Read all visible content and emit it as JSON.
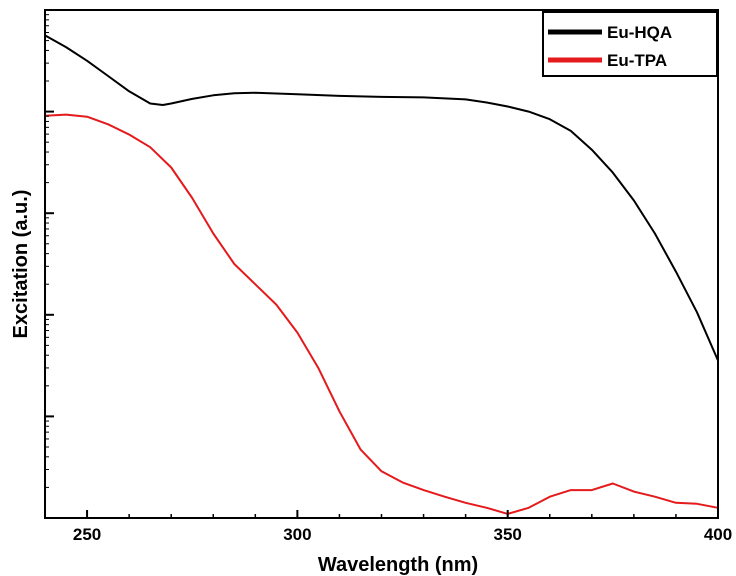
{
  "chart_data": {
    "type": "line",
    "title": "",
    "xlabel": "Wavelength (nm)",
    "ylabel": "Excitation (a.u.)",
    "xlim": [
      240,
      400
    ],
    "ylim": [
      0,
      10
    ],
    "y_scale": "log",
    "x_ticks": [
      250,
      300,
      350,
      400
    ],
    "y_tick_labels_shown": false,
    "grid": false,
    "legend_position": "top-right",
    "series": [
      {
        "name": "Eu-HQA",
        "color": "#000000",
        "points": [
          [
            240,
            9.5
          ],
          [
            245,
            9.27
          ],
          [
            250,
            9.0
          ],
          [
            255,
            8.7
          ],
          [
            260,
            8.4
          ],
          [
            265,
            8.16
          ],
          [
            268,
            8.13
          ],
          [
            270,
            8.16
          ],
          [
            275,
            8.25
          ],
          [
            280,
            8.32
          ],
          [
            285,
            8.36
          ],
          [
            290,
            8.37
          ],
          [
            300,
            8.34
          ],
          [
            310,
            8.31
          ],
          [
            320,
            8.29
          ],
          [
            330,
            8.28
          ],
          [
            340,
            8.24
          ],
          [
            345,
            8.18
          ],
          [
            350,
            8.1
          ],
          [
            355,
            8.0
          ],
          [
            360,
            7.85
          ],
          [
            365,
            7.62
          ],
          [
            370,
            7.25
          ],
          [
            375,
            6.8
          ],
          [
            380,
            6.25
          ],
          [
            385,
            5.6
          ],
          [
            390,
            4.85
          ],
          [
            395,
            4.05
          ],
          [
            400,
            3.1
          ]
        ]
      },
      {
        "name": "Eu-TPA",
        "color": "#e41a1c",
        "points": [
          [
            240,
            7.92
          ],
          [
            245,
            7.94
          ],
          [
            250,
            7.9
          ],
          [
            255,
            7.75
          ],
          [
            260,
            7.55
          ],
          [
            265,
            7.3
          ],
          [
            270,
            6.9
          ],
          [
            275,
            6.3
          ],
          [
            280,
            5.6
          ],
          [
            285,
            5.0
          ],
          [
            290,
            4.6
          ],
          [
            295,
            4.2
          ],
          [
            300,
            3.65
          ],
          [
            305,
            2.95
          ],
          [
            310,
            2.1
          ],
          [
            315,
            1.35
          ],
          [
            320,
            0.92
          ],
          [
            325,
            0.7
          ],
          [
            330,
            0.55
          ],
          [
            335,
            0.42
          ],
          [
            340,
            0.3
          ],
          [
            345,
            0.2
          ],
          [
            350,
            0.08
          ],
          [
            355,
            0.2
          ],
          [
            360,
            0.42
          ],
          [
            365,
            0.55
          ],
          [
            370,
            0.55
          ],
          [
            375,
            0.68
          ],
          [
            380,
            0.52
          ],
          [
            385,
            0.42
          ],
          [
            390,
            0.3
          ],
          [
            395,
            0.28
          ],
          [
            400,
            0.2
          ]
        ]
      }
    ]
  }
}
